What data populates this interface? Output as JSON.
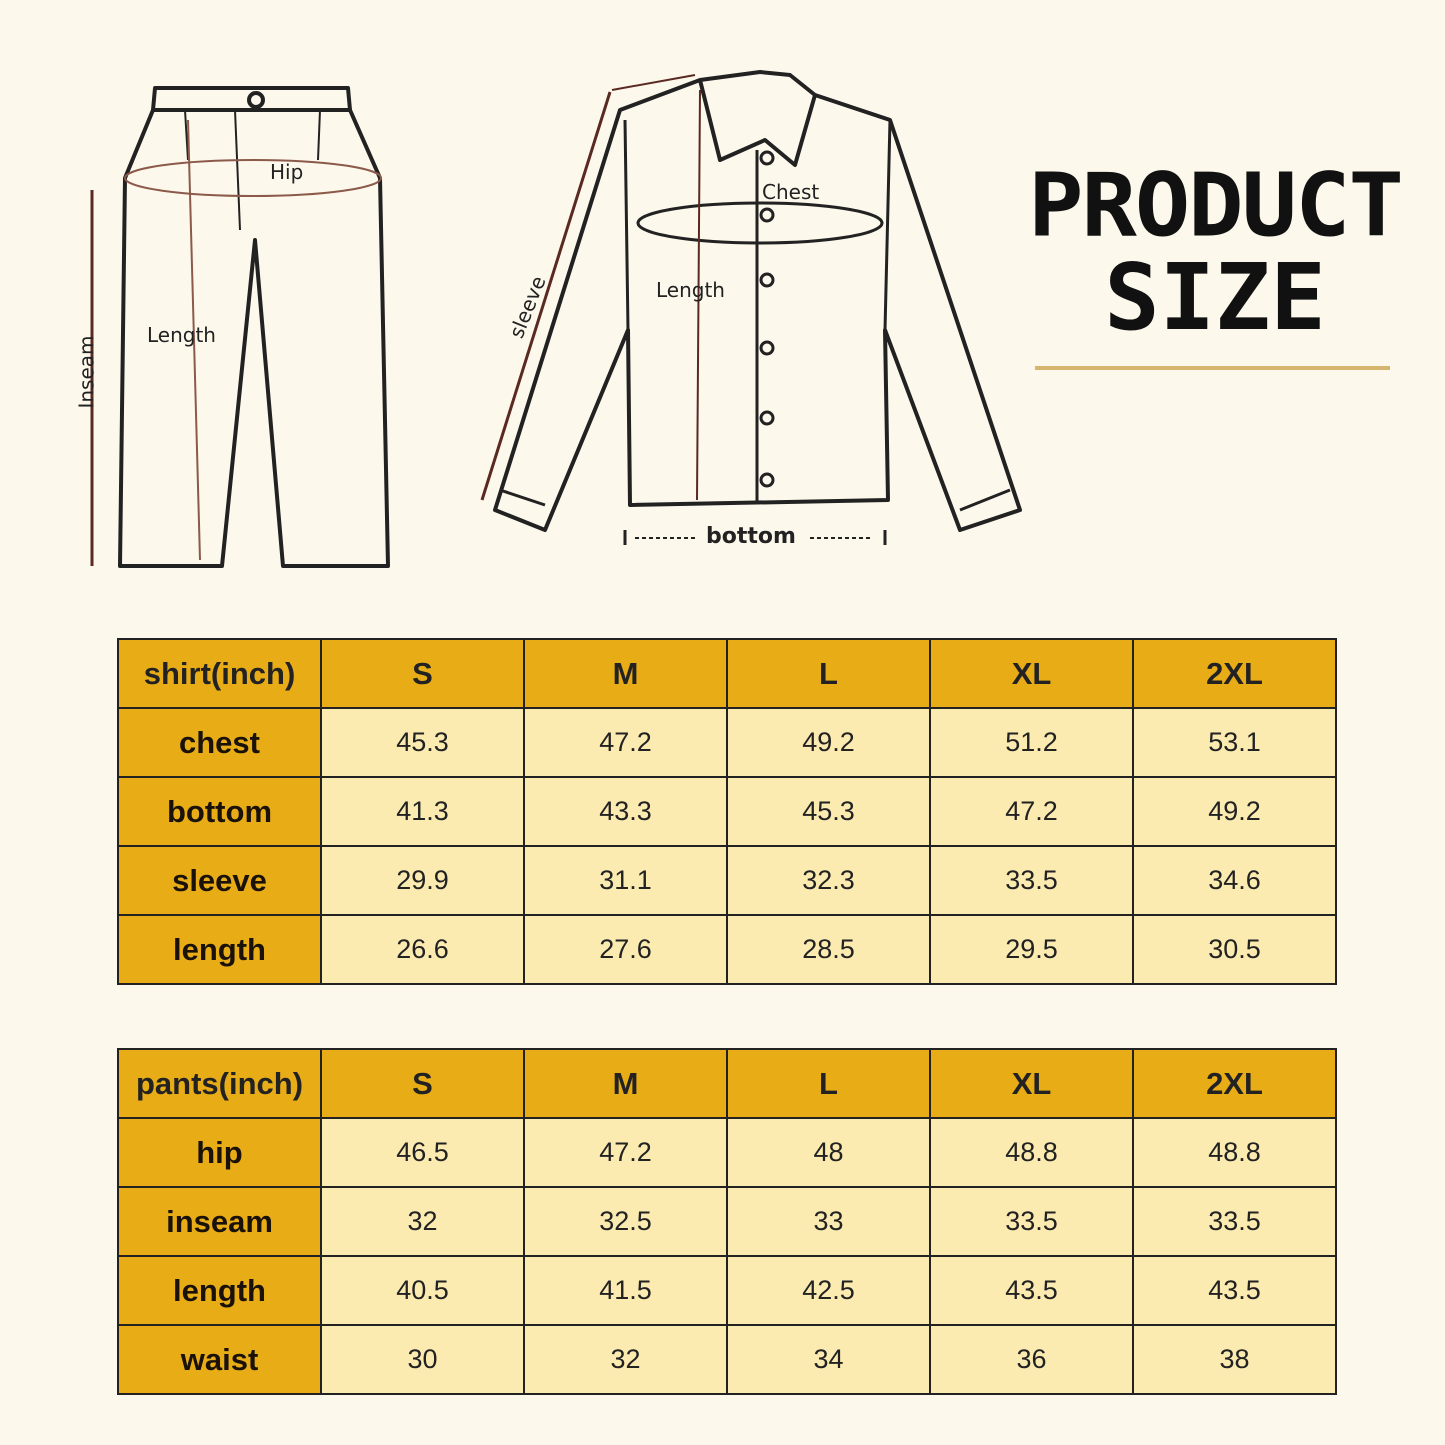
{
  "title": {
    "line1": "PRODUCT",
    "line2": "SIZE"
  },
  "pants_diagram": {
    "hip": "Hip",
    "length": "Length",
    "inseam": "Inseam"
  },
  "shirt_diagram": {
    "chest": "Chest",
    "length": "Length",
    "sleeve": "sleeve",
    "bottom": "bottom"
  },
  "colors": {
    "background": "#fdf8ec",
    "header": "#e8ac17",
    "cell": "#fcebb0",
    "rule": "#d6b66f"
  },
  "shirt_table": {
    "header": [
      "shirt(inch)",
      "S",
      "M",
      "L",
      "XL",
      "2XL"
    ],
    "rows": [
      {
        "label": "chest",
        "values": [
          "45.3",
          "47.2",
          "49.2",
          "51.2",
          "53.1"
        ]
      },
      {
        "label": "bottom",
        "values": [
          "41.3",
          "43.3",
          "45.3",
          "47.2",
          "49.2"
        ]
      },
      {
        "label": "sleeve",
        "values": [
          "29.9",
          "31.1",
          "32.3",
          "33.5",
          "34.6"
        ]
      },
      {
        "label": "length",
        "values": [
          "26.6",
          "27.6",
          "28.5",
          "29.5",
          "30.5"
        ]
      }
    ]
  },
  "pants_table": {
    "header": [
      "pants(inch)",
      "S",
      "M",
      "L",
      "XL",
      "2XL"
    ],
    "rows": [
      {
        "label": "hip",
        "values": [
          "46.5",
          "47.2",
          "48",
          "48.8",
          "48.8"
        ]
      },
      {
        "label": "inseam",
        "values": [
          "32",
          "32.5",
          "33",
          "33.5",
          "33.5"
        ]
      },
      {
        "label": "length",
        "values": [
          "40.5",
          "41.5",
          "42.5",
          "43.5",
          "43.5"
        ]
      },
      {
        "label": "waist",
        "values": [
          "30",
          "32",
          "34",
          "36",
          "38"
        ]
      }
    ]
  }
}
